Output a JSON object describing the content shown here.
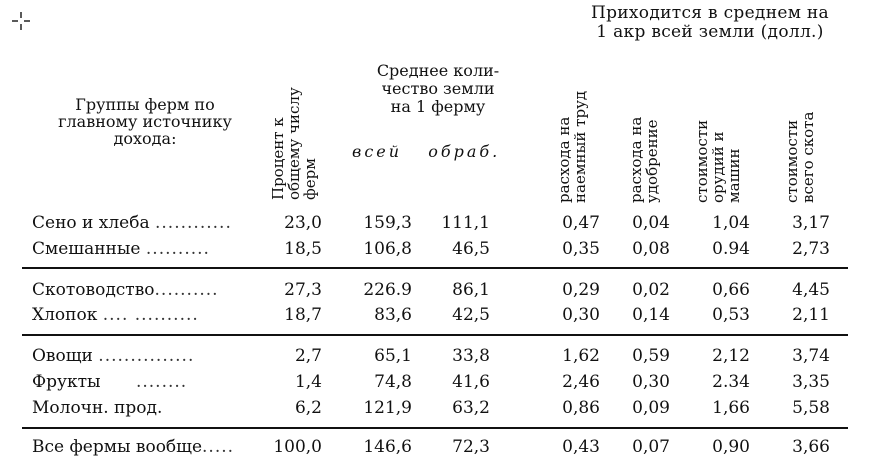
{
  "header": {
    "top_right_line1": "Приходится в среднем на",
    "top_right_line2": "1 акр всей земли (долл.)",
    "groups_line1": "Группы ферм по",
    "groups_line2": "главному источнику",
    "groups_line3": "дохода:",
    "percent_line1": "Процент к",
    "percent_line2": "общему числу",
    "percent_line3": "ферм",
    "land_line1": "Среднее коли-",
    "land_line2": "чество земли",
    "land_line3": "на 1 ферму",
    "land_all": "всей",
    "land_worked": "обраб.",
    "col_labor_line1": "расхода на",
    "col_labor_line2": "наемный труд",
    "col_fert_line1": "расхода на",
    "col_fert_line2": "удобрение",
    "col_tools_line1": "стоимости",
    "col_tools_line2": "орудий и",
    "col_tools_line3": "машин",
    "col_stock_line1": "стоимости",
    "col_stock_line2": "всего скота"
  },
  "rows": [
    {
      "label": "Сено и хлеба",
      "dots": "............",
      "pct": "23,0",
      "all": "159,3",
      "worked": "111,1",
      "labor": "0,47",
      "fert": "0,04",
      "tools": "1,04",
      "stock": "3,17"
    },
    {
      "label": "Смешанные",
      "dots": "..........",
      "pct": "18,5",
      "all": "106,8",
      "worked": "46,5",
      "labor": "0,35",
      "fert": "0,08",
      "tools": "0.94",
      "stock": "2,73"
    },
    {
      "label": "Скотоводство",
      "dots": "..........",
      "pct": "27,3",
      "all": "226.9",
      "worked": "86,1",
      "labor": "0,29",
      "fert": "0,02",
      "tools": "0,66",
      "stock": "4,45"
    },
    {
      "label": "Хлопок",
      "dots": "....  ..........",
      "pct": "18,7",
      "all": "83,6",
      "worked": "42,5",
      "labor": "0,30",
      "fert": "0,14",
      "tools": "0,53",
      "stock": "2,11"
    },
    {
      "label": "Овощи",
      "dots": "...............",
      "pct": "2,7",
      "all": "65,1",
      "worked": "33,8",
      "labor": "1,62",
      "fert": "0,59",
      "tools": "2,12",
      "stock": "3,74"
    },
    {
      "label": "Фрукты",
      "dots": "........",
      "pct": "1,4",
      "all": "74,8",
      "worked": "41,6",
      "labor": "2,46",
      "fert": "0,30",
      "tools": "2.34",
      "stock": "3,35"
    },
    {
      "label": "Молочн. прод.",
      "dots": "",
      "pct": "6,2",
      "all": "121,9",
      "worked": "63,2",
      "labor": "0,86",
      "fert": "0,09",
      "tools": "1,66",
      "stock": "5,58"
    },
    {
      "label": "Все фермы вообще",
      "dots": ".....",
      "pct": "100,0",
      "all": "146,6",
      "worked": "72,3",
      "labor": "0,43",
      "fert": "0,07",
      "tools": "0,90",
      "stock": "3,66"
    }
  ]
}
